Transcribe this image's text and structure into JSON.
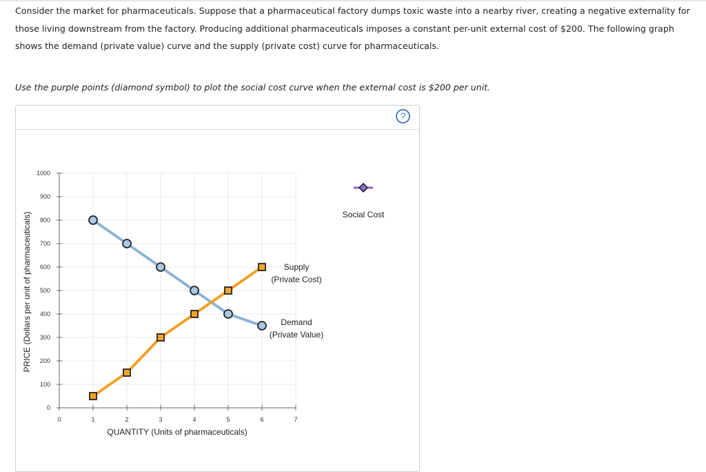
{
  "question": {
    "paragraph": "Consider the market for pharmaceuticals. Suppose that a pharmaceutical factory dumps toxic waste into a nearby river, creating a negative externality for those living downstream from the factory. Producing additional pharmaceuticals imposes a constant per-unit external cost of $200. The following graph shows the demand (private value) curve and the supply (private cost) curve for pharmaceuticals.",
    "instruction": "Use the purple points (diamond symbol) to plot the social cost curve when the external cost is $200 per unit."
  },
  "help_label": "?",
  "colors": {
    "demand": "#8db4d8",
    "demand_marker": "#a9c8e4",
    "supply": "#f4a025",
    "supply_marker": "#f7a528",
    "social_cost": "#9b59d0",
    "social_cost_marker": "#8a6fd6",
    "grid": "#e8e8e8",
    "axis": "#666666"
  },
  "chart_data": {
    "type": "line",
    "xlabel": "QUANTITY (Units of pharmaceuticals)",
    "ylabel": "PRICE (Dollars per unit of pharmaceuticals)",
    "xlim": [
      0,
      7
    ],
    "ylim": [
      0,
      1000
    ],
    "xticks": [
      0,
      1,
      2,
      3,
      4,
      5,
      6,
      7
    ],
    "yticks": [
      0,
      100,
      200,
      300,
      400,
      500,
      600,
      700,
      800,
      900,
      1000
    ],
    "grid": true,
    "series": [
      {
        "name": "Demand (Private Value)",
        "label_lines": [
          "Demand",
          "(Private Value)"
        ],
        "marker": "circle",
        "x": [
          1,
          2,
          3,
          4,
          5,
          6
        ],
        "y": [
          800,
          700,
          600,
          500,
          400,
          350
        ]
      },
      {
        "name": "Supply (Private Cost)",
        "label_lines": [
          "Supply",
          "(Private Cost)"
        ],
        "marker": "square",
        "x": [
          1,
          2,
          3,
          4,
          5,
          6
        ],
        "y": [
          50,
          150,
          300,
          400,
          500,
          600
        ]
      }
    ],
    "legend": {
      "items": [
        {
          "name": "Social Cost",
          "marker": "diamond"
        }
      ]
    }
  }
}
